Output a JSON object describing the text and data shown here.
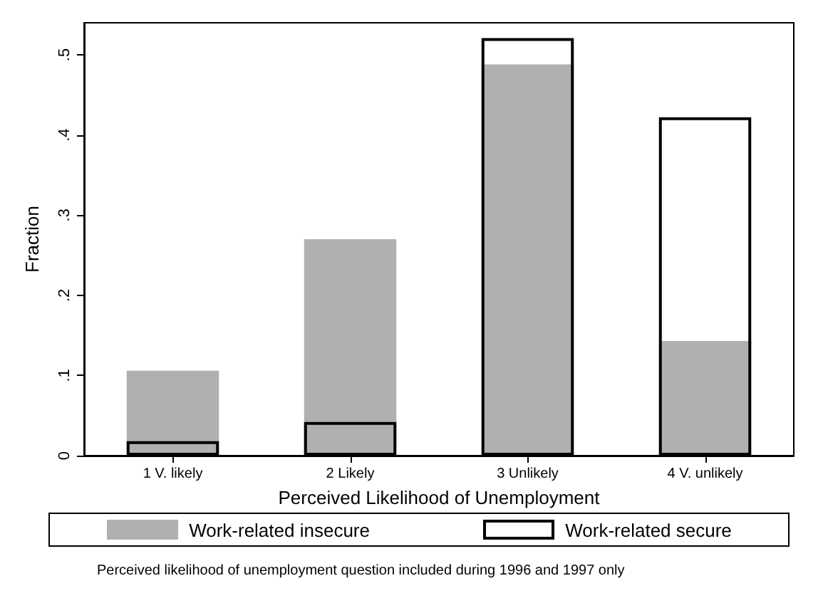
{
  "chart_data": {
    "type": "bar",
    "xlabel": "Perceived Likelihood of Unemployment",
    "ylabel": "Fraction",
    "categories": [
      "1 V. likely",
      "2 Likely",
      "3 Unlikely",
      "4 V. unlikely"
    ],
    "series": [
      {
        "name": "Work-related insecure",
        "color": "#b0b0b0",
        "values": [
          0.106,
          0.27,
          0.488,
          0.143
        ]
      },
      {
        "name": "Work-related secure",
        "color": "#000000",
        "values": [
          0.018,
          0.042,
          0.521,
          0.422
        ]
      }
    ],
    "ylim": [
      0,
      0.54
    ],
    "yticks": [
      0,
      {
        "value": 0.1,
        "label": ".1"
      },
      {
        "value": 0.2,
        "label": ".2"
      },
      {
        "value": 0.3,
        "label": ".3"
      },
      {
        "value": 0.4,
        "label": ".4"
      },
      {
        "value": 0.5,
        "label": ".5"
      }
    ],
    "grid": false,
    "legend": "bottom",
    "annotations": [
      "Perceived likelihood of unemployment question included during 1996 and 1997 only"
    ]
  }
}
